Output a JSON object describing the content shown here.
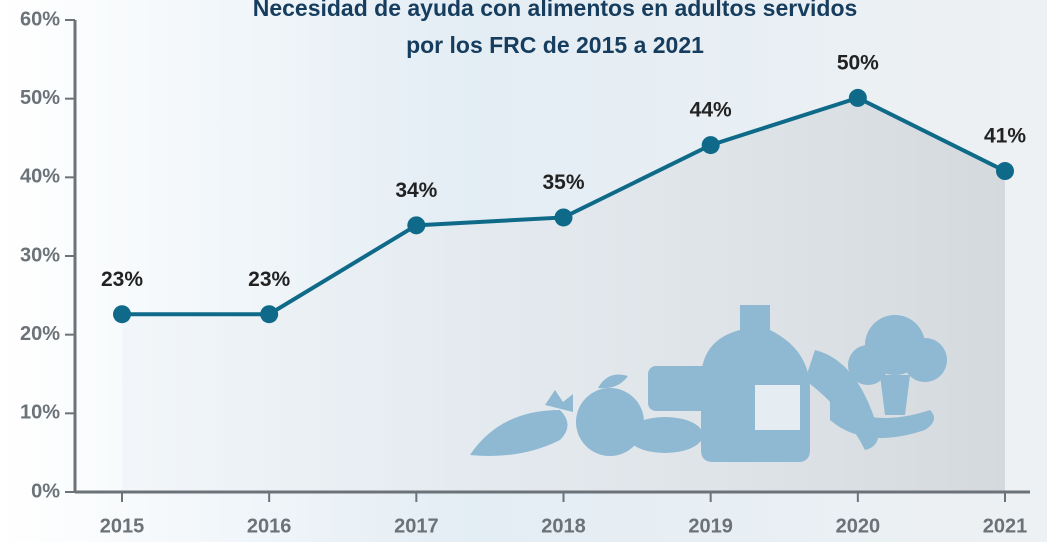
{
  "chart_data": {
    "type": "line",
    "title": [
      "Necesidad de ayuda con alimentos en adultos servidos",
      "por los FRC de 2015 a 2021"
    ],
    "categories": [
      "2015",
      "2016",
      "2017",
      "2018",
      "2019",
      "2020",
      "2021"
    ],
    "values": [
      22.6,
      22.6,
      33.9,
      34.9,
      44.1,
      50.1,
      40.8
    ],
    "value_labels": [
      "23%",
      "23%",
      "34%",
      "35%",
      "44%",
      "50%",
      "41%"
    ],
    "color": "#0f6a89",
    "ylim": [
      0,
      60
    ],
    "yticks": [
      {
        "value": 0,
        "label": "0%"
      },
      {
        "value": 10,
        "label": "10%"
      },
      {
        "value": 20,
        "label": "20%"
      },
      {
        "value": 30,
        "label": "30%"
      },
      {
        "value": 40,
        "label": "40%"
      },
      {
        "value": 50,
        "label": "50%"
      },
      {
        "value": 60,
        "label": "60%"
      }
    ]
  }
}
